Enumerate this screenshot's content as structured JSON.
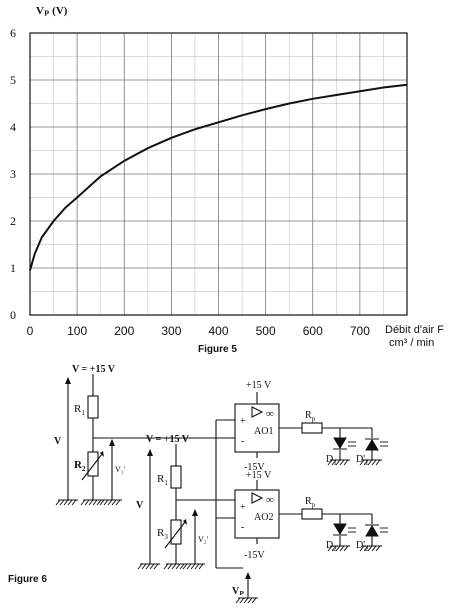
{
  "chart_data": {
    "type": "line",
    "title": "",
    "caption": "Figure 5",
    "ylabel": "Vₚ (V)",
    "xlabel_line1": "Débit d'air F",
    "xlabel_line2": "cm³ / min",
    "xlim": [
      0,
      800
    ],
    "ylim": [
      0,
      6
    ],
    "x_ticks": [
      "0",
      "100",
      "200",
      "300",
      "400",
      "500",
      "600",
      "700"
    ],
    "y_ticks": [
      "0",
      "1",
      "2",
      "3",
      "4",
      "5",
      "6"
    ],
    "grid": true,
    "series": [
      {
        "x": [
          0,
          10,
          25,
          50,
          75,
          100,
          150,
          200,
          250,
          300,
          350,
          400,
          450,
          500,
          550,
          600,
          650,
          700,
          750,
          800
        ],
        "y": [
          0.95,
          1.3,
          1.65,
          2.0,
          2.28,
          2.5,
          2.95,
          3.28,
          3.55,
          3.77,
          3.95,
          4.1,
          4.25,
          4.38,
          4.5,
          4.6,
          4.68,
          4.76,
          4.84,
          4.9
        ]
      }
    ]
  },
  "diagram": {
    "caption": "Figure 6",
    "v_supply_label": "V = +15 V",
    "v_supply_label2": "V = +15 V",
    "v_left": "V",
    "v_mid": "V",
    "r1_label": "R",
    "r1_sub": "1",
    "r2_label": "R",
    "r2_sub": "2",
    "r1b_label": "R",
    "r1b_sub": "1",
    "r3_label": "R",
    "r3_sub": "3",
    "v1_label": "V₁'",
    "v2_label": "V₂'",
    "ao1": "AO1",
    "ao2": "AO2",
    "plus15_1": "+15 V",
    "minus15_1": "-15V",
    "plus15_2": "+15 V",
    "minus15_2": "-15V",
    "rp1_label": "R",
    "rp1_sub": "p",
    "rp2_label": "R",
    "rp2_sub": "p",
    "d1": "D",
    "d1_sub": "1",
    "dp1": "D'",
    "dp1_sub": "1",
    "d2": "D",
    "d2_sub": "2",
    "dp2": "D'",
    "dp2_sub": "2",
    "vp_label": "Vₚ",
    "plus_sign": "+",
    "minus_sign": "-",
    "inf_sign": "∞"
  }
}
